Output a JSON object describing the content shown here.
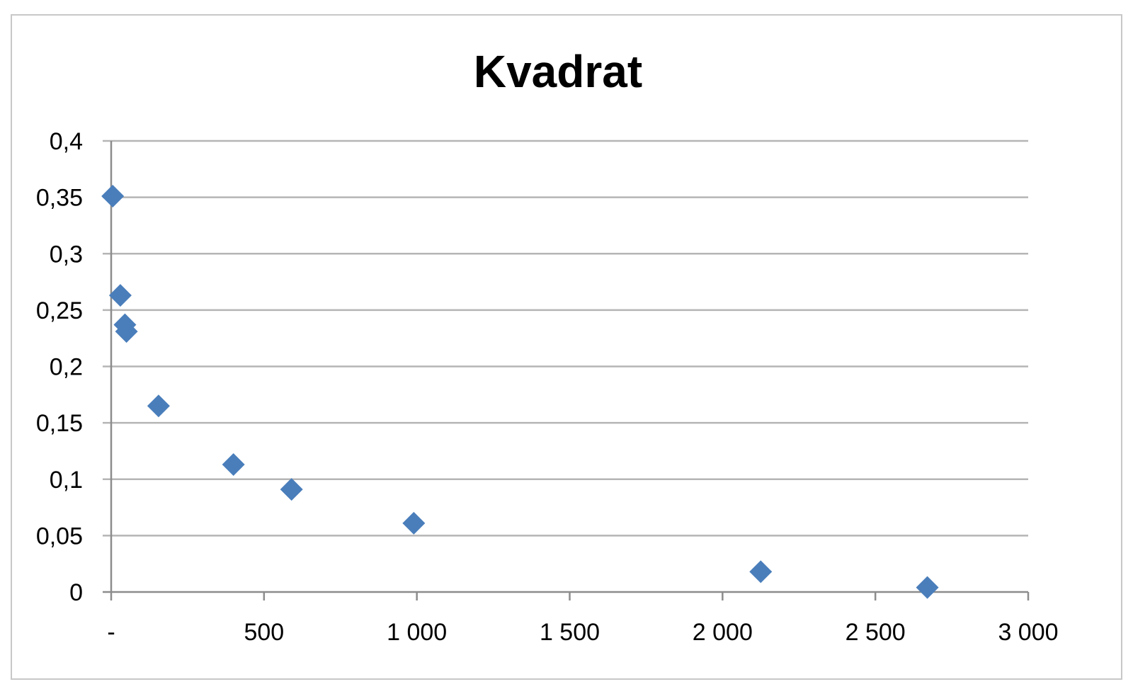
{
  "chart_data": {
    "type": "scatter",
    "title": "Kvadrat",
    "xlabel": "",
    "ylabel": "",
    "xlim": [
      0,
      3000
    ],
    "ylim": [
      0,
      0.4
    ],
    "grid": true,
    "marker": "diamond",
    "color": "#4a7ebb",
    "x_ticks": [
      {
        "value": 0,
        "label": "-"
      },
      {
        "value": 500,
        "label": "500"
      },
      {
        "value": 1000,
        "label": "1 000"
      },
      {
        "value": 1500,
        "label": "1 500"
      },
      {
        "value": 2000,
        "label": "2 000"
      },
      {
        "value": 2500,
        "label": "2 500"
      },
      {
        "value": 3000,
        "label": "3 000"
      }
    ],
    "y_ticks": [
      {
        "value": 0,
        "label": "0"
      },
      {
        "value": 0.05,
        "label": "0,05"
      },
      {
        "value": 0.1,
        "label": "0,1"
      },
      {
        "value": 0.15,
        "label": "0,15"
      },
      {
        "value": 0.2,
        "label": "0,2"
      },
      {
        "value": 0.25,
        "label": "0,25"
      },
      {
        "value": 0.3,
        "label": "0,3"
      },
      {
        "value": 0.35,
        "label": "0,35"
      },
      {
        "value": 0.4,
        "label": "0,4"
      }
    ],
    "series": [
      {
        "points": [
          {
            "x": 5,
            "y": 0.351
          },
          {
            "x": 30,
            "y": 0.263
          },
          {
            "x": 45,
            "y": 0.237
          },
          {
            "x": 50,
            "y": 0.231
          },
          {
            "x": 155,
            "y": 0.165
          },
          {
            "x": 400,
            "y": 0.113
          },
          {
            "x": 590,
            "y": 0.091
          },
          {
            "x": 990,
            "y": 0.061
          },
          {
            "x": 2125,
            "y": 0.018
          },
          {
            "x": 2670,
            "y": 0.004
          }
        ]
      }
    ]
  }
}
